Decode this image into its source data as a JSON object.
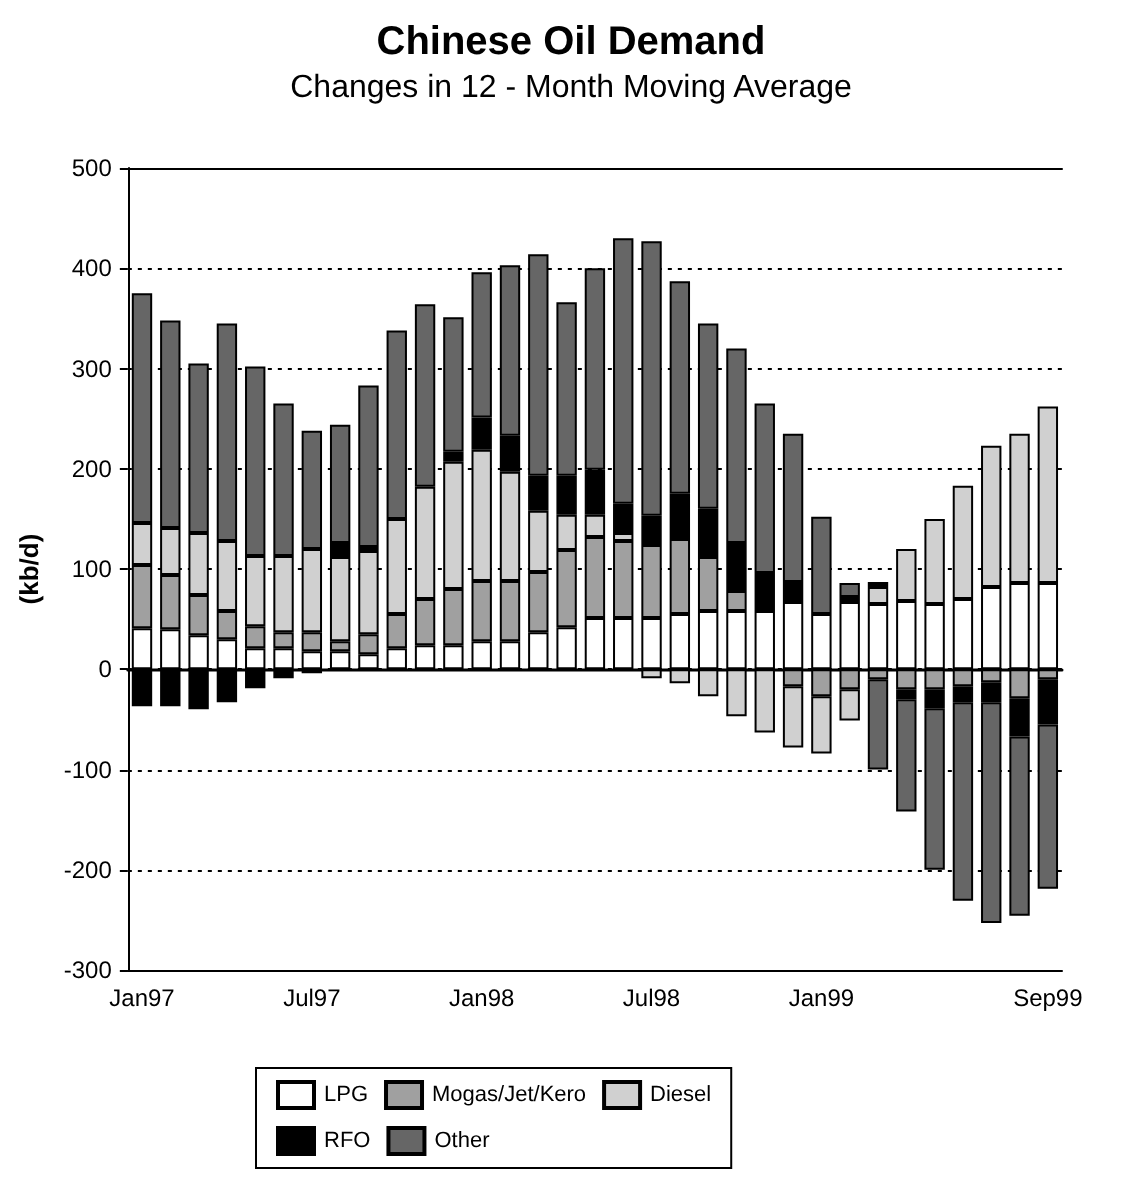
{
  "chart_data": {
    "type": "bar",
    "title": "Chinese Oil Demand",
    "subtitle": "Changes in 12 - Month Moving Average",
    "ylabel": "(kb/d)",
    "categories": [
      "Jan97",
      null,
      null,
      null,
      null,
      null,
      "Jul97",
      null,
      null,
      null,
      null,
      null,
      "Jan98",
      null,
      null,
      null,
      null,
      null,
      "Jul98",
      null,
      null,
      null,
      null,
      null,
      "Jan99",
      null,
      null,
      null,
      null,
      null,
      null,
      null,
      "Sep99"
    ],
    "stacked": true,
    "series": [
      {
        "name": "LPG",
        "color": "#ffffff",
        "values": [
          41,
          40,
          34,
          30,
          21,
          21,
          18,
          18,
          15,
          21,
          24,
          24,
          28,
          28,
          37,
          42,
          51,
          51,
          51,
          55,
          58,
          58,
          58,
          67,
          55,
          67,
          65,
          68,
          65,
          70,
          82,
          86,
          86
        ]
      },
      {
        "name": "Mogas/Jet/Kero",
        "color": "#a0a0a0",
        "values": [
          63,
          54,
          40,
          28,
          22,
          16,
          19,
          10,
          20,
          34,
          46,
          56,
          60,
          60,
          60,
          77,
          81,
          77,
          73,
          75,
          54,
          20,
          null,
          -17,
          -27,
          -20,
          -10,
          -20,
          -20,
          -17,
          -13,
          -29,
          -10
        ]
      },
      {
        "name": "Diesel",
        "color": "#d0d0d0",
        "values": [
          42,
          47,
          62,
          70,
          70,
          76,
          83,
          84,
          83,
          95,
          112,
          127,
          131,
          109,
          61,
          35,
          22,
          8,
          -9,
          -14,
          -27,
          -47,
          -63,
          -61,
          -57,
          -31,
          17,
          52,
          85,
          113,
          141,
          149,
          176
        ]
      },
      {
        "name": "RFO",
        "color": "#000000",
        "values": [
          -37,
          -37,
          -40,
          -33,
          -19,
          -9,
          -4,
          14,
          4,
          null,
          null,
          10,
          32,
          36,
          35,
          39,
          45,
          29,
          29,
          45,
          48,
          48,
          38,
          20,
          null,
          5,
          5,
          -10,
          -19,
          -16,
          -20,
          -38,
          -45
        ]
      },
      {
        "name": "Other",
        "color": "#666666",
        "values": [
          229,
          207,
          169,
          217,
          189,
          152,
          118,
          118,
          161,
          188,
          182,
          134,
          145,
          170,
          221,
          173,
          201,
          265,
          274,
          212,
          185,
          194,
          169,
          148,
          97,
          14,
          -90,
          -112,
          -161,
          -198,
          -220,
          -179,
          -164
        ]
      }
    ],
    "ylim": [
      -300,
      500
    ],
    "yticks": [
      -300,
      -200,
      -100,
      0,
      100,
      200,
      300,
      400,
      500
    ],
    "grid": "y",
    "legend": "bottom"
  }
}
